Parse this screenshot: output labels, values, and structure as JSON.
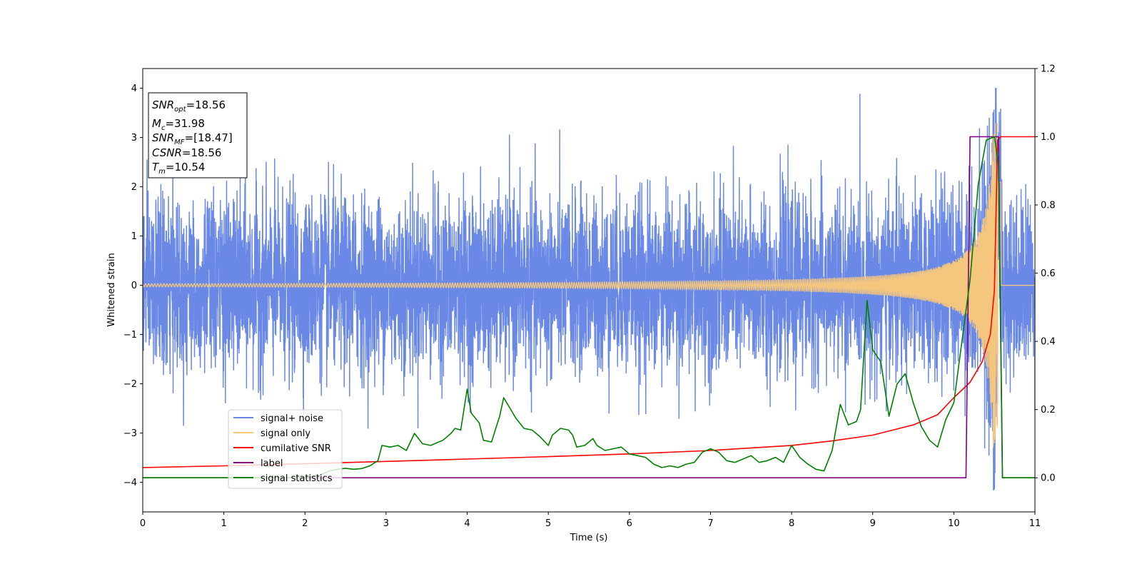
{
  "chart_data": {
    "type": "line",
    "xlabel": "Time (s)",
    "ylabel": "Whitened strain",
    "xlim": [
      0,
      11
    ],
    "ylim_left": [
      -4.6,
      4.4
    ],
    "ylim_right": [
      -0.1,
      1.2
    ],
    "x_ticks": [
      "0",
      "1",
      "2",
      "3",
      "4",
      "5",
      "6",
      "7",
      "8",
      "9",
      "10",
      "11"
    ],
    "y_left_ticks": [
      "4",
      "3",
      "2",
      "1",
      "0",
      "−1",
      "−2",
      "−3",
      "−4"
    ],
    "y_right_ticks": [
      "1.2",
      "1.0",
      "0.8",
      "0.6",
      "0.4",
      "0.2",
      "0.0"
    ],
    "annotation": {
      "lines": [
        {
          "base": "SNR",
          "sub": "opt",
          "rest": "=18.56"
        },
        {
          "base": "M",
          "sub": "c",
          "rest": "=31.98"
        },
        {
          "base": "SNR",
          "sub": "MF",
          "rest": "=[18.47]"
        },
        {
          "base": "CSNR",
          "sub": "",
          "rest": "=18.56"
        },
        {
          "base": "T",
          "sub": "m",
          "rest": "=10.54"
        }
      ]
    },
    "legend_position": "lower-left",
    "series": [
      {
        "name": "signal+ noise",
        "color": "#6a89e6",
        "axis": "left",
        "description_values": {
          "typical_amplitude": 1.4,
          "peak_max": 4.0,
          "peak_min": -4.15
        }
      },
      {
        "name": "signal only",
        "color": "#f5c77e",
        "axis": "left",
        "description_values": {
          "start_amplitude": 0.03,
          "peak_amplitude": 3.3,
          "merger_time": 10.54
        }
      },
      {
        "name": "cumilative SNR",
        "color": "#ff0000",
        "axis": "right",
        "x": [
          0,
          1,
          2,
          3,
          4,
          5,
          6,
          7,
          8,
          8.5,
          9,
          9.5,
          9.8,
          10,
          10.2,
          10.35,
          10.45,
          10.5,
          10.54,
          10.58,
          11
        ],
        "y": [
          0.03,
          0.035,
          0.041,
          0.048,
          0.055,
          0.062,
          0.07,
          0.08,
          0.095,
          0.108,
          0.125,
          0.155,
          0.185,
          0.235,
          0.28,
          0.34,
          0.42,
          0.55,
          0.99,
          1.0,
          1.0
        ]
      },
      {
        "name": "label",
        "color": "#800080",
        "axis": "right",
        "x": [
          0,
          10.15,
          10.2,
          10.55,
          10.6,
          11
        ],
        "y": [
          0.0,
          0.0,
          1.0,
          1.0,
          0.0,
          0.0
        ]
      },
      {
        "name": "signal statistics",
        "color": "#008000",
        "axis": "right",
        "x": [
          0,
          0.2,
          0.5,
          1.0,
          1.5,
          2.0,
          2.2,
          2.3,
          2.4,
          2.5,
          2.6,
          2.7,
          2.8,
          2.9,
          2.95,
          3.05,
          3.15,
          3.25,
          3.35,
          3.45,
          3.55,
          3.7,
          3.8,
          3.85,
          3.92,
          4.0,
          4.05,
          4.15,
          4.2,
          4.3,
          4.4,
          4.45,
          4.6,
          4.7,
          4.8,
          4.9,
          5.0,
          5.05,
          5.15,
          5.25,
          5.3,
          5.35,
          5.45,
          5.55,
          5.6,
          5.7,
          5.8,
          5.9,
          6.0,
          6.1,
          6.2,
          6.3,
          6.4,
          6.5,
          6.6,
          6.7,
          6.8,
          6.9,
          7.0,
          7.1,
          7.2,
          7.3,
          7.4,
          7.5,
          7.6,
          7.7,
          7.8,
          7.9,
          8.0,
          8.1,
          8.2,
          8.3,
          8.4,
          8.5,
          8.6,
          8.7,
          8.8,
          8.85,
          8.93,
          9.0,
          9.1,
          9.2,
          9.3,
          9.4,
          9.5,
          9.6,
          9.7,
          9.8,
          9.9,
          10.0,
          10.1,
          10.2,
          10.3,
          10.4,
          10.5,
          10.55,
          10.6,
          11.0
        ],
        "y": [
          0.0,
          0.0,
          0.0,
          0.0,
          0.0,
          0.0,
          0.01,
          0.02,
          0.025,
          0.028,
          0.025,
          0.027,
          0.035,
          0.05,
          0.095,
          0.09,
          0.095,
          0.08,
          0.13,
          0.1,
          0.095,
          0.11,
          0.13,
          0.145,
          0.14,
          0.26,
          0.19,
          0.16,
          0.11,
          0.105,
          0.18,
          0.235,
          0.175,
          0.145,
          0.14,
          0.12,
          0.095,
          0.125,
          0.145,
          0.14,
          0.125,
          0.09,
          0.095,
          0.115,
          0.095,
          0.08,
          0.085,
          0.09,
          0.07,
          0.065,
          0.06,
          0.04,
          0.03,
          0.035,
          0.03,
          0.04,
          0.045,
          0.075,
          0.085,
          0.075,
          0.05,
          0.045,
          0.055,
          0.065,
          0.045,
          0.05,
          0.06,
          0.045,
          0.095,
          0.06,
          0.04,
          0.025,
          0.02,
          0.08,
          0.215,
          0.155,
          0.165,
          0.2,
          0.52,
          0.375,
          0.34,
          0.18,
          0.275,
          0.305,
          0.22,
          0.15,
          0.11,
          0.09,
          0.17,
          0.22,
          0.4,
          0.58,
          0.86,
          0.99,
          1.0,
          0.92,
          0.0,
          0.0
        ]
      }
    ]
  }
}
